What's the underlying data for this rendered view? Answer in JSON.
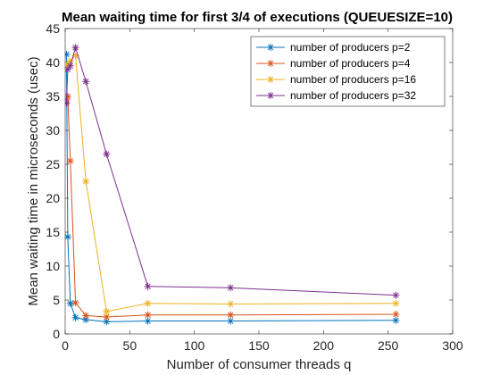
{
  "chart_data": {
    "type": "line",
    "title": "Mean waiting time for first 3/4 of executions (QUEUESIZE=10)",
    "xlabel": "Number of consumer threads q",
    "ylabel": "Mean waiting time in microseconds (usec)",
    "xlim": [
      0,
      300
    ],
    "ylim": [
      0,
      45
    ],
    "xticks": [
      0,
      50,
      100,
      150,
      200,
      250,
      300
    ],
    "yticks": [
      0,
      5,
      10,
      15,
      20,
      25,
      30,
      35,
      40,
      45
    ],
    "grid": false,
    "legend_position": "top-right",
    "x": [
      1,
      2,
      4,
      8,
      16,
      32,
      64,
      128,
      256
    ],
    "series": [
      {
        "name": "number of producers p=2",
        "color": "#0072BD",
        "marker": "asterisk",
        "values": [
          41.2,
          14.3,
          4.5,
          2.4,
          2.1,
          1.8,
          1.9,
          1.9,
          2.0
        ]
      },
      {
        "name": "number of producers p=4",
        "color": "#D95319",
        "marker": "asterisk",
        "values": [
          34.5,
          35.0,
          25.5,
          4.6,
          2.7,
          2.5,
          2.8,
          2.8,
          2.9
        ]
      },
      {
        "name": "number of producers p=16",
        "color": "#EDB120",
        "marker": "asterisk",
        "values": [
          39.5,
          39.8,
          40.2,
          41.0,
          22.5,
          3.3,
          4.5,
          4.4,
          4.5
        ]
      },
      {
        "name": "number of producers p=32",
        "color": "#7E2F8E",
        "marker": "asterisk",
        "values": [
          34.0,
          39.0,
          39.5,
          42.2,
          37.2,
          26.5,
          7.0,
          6.8,
          5.7
        ]
      }
    ]
  }
}
